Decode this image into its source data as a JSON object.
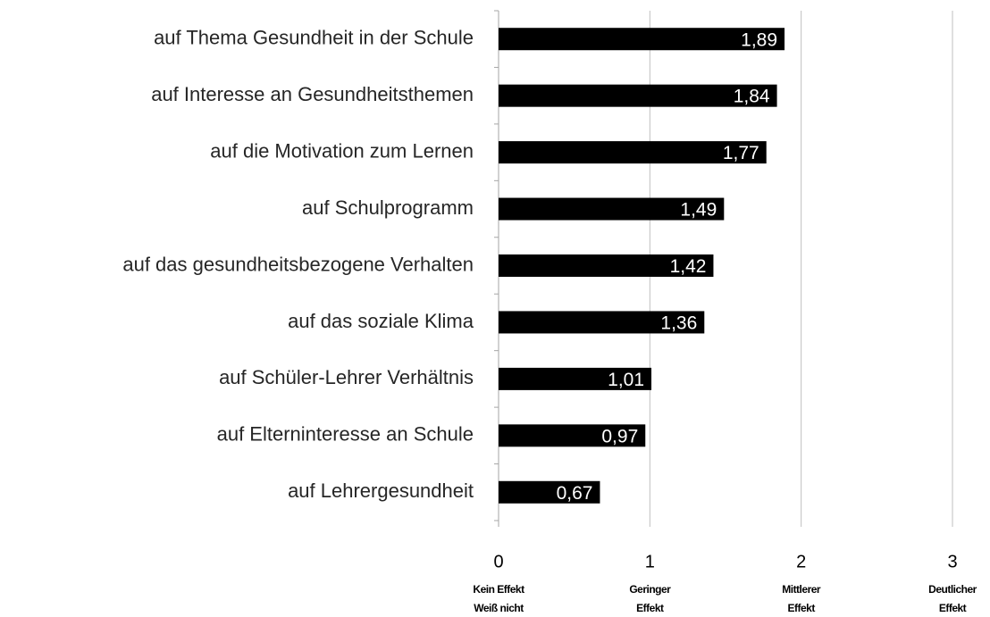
{
  "chart_data": {
    "type": "barh",
    "categories": [
      "auf Thema Gesundheit in der Schule",
      "auf Interesse an Gesundheitsthemen",
      "auf die Motivation zum Lernen",
      "auf Schulprogramm",
      "auf das gesundheitsbezogene Verhalten",
      "auf das soziale Klima",
      "auf Schüler-Lehrer Verhältnis",
      "auf Elterninteresse an Schule",
      "auf Lehrergesundheit"
    ],
    "values": [
      1.89,
      1.84,
      1.77,
      1.49,
      1.42,
      1.36,
      1.01,
      0.97,
      0.67
    ],
    "value_labels": [
      "1,89",
      "1,84",
      "1,77",
      "1,49",
      "1,42",
      "1,36",
      "1,01",
      "0,97",
      "0,67"
    ],
    "color": "#000000",
    "xlim": [
      0,
      3
    ],
    "xticks": [
      0,
      1,
      2,
      3
    ],
    "xtick_descriptions": [
      [
        "Kein Effekt",
        "Weiß nicht"
      ],
      [
        "Geringer",
        "Effekt"
      ],
      [
        "Mittlerer",
        "Effekt"
      ],
      [
        "Deutlicher",
        "Effekt"
      ]
    ],
    "grid": true
  }
}
